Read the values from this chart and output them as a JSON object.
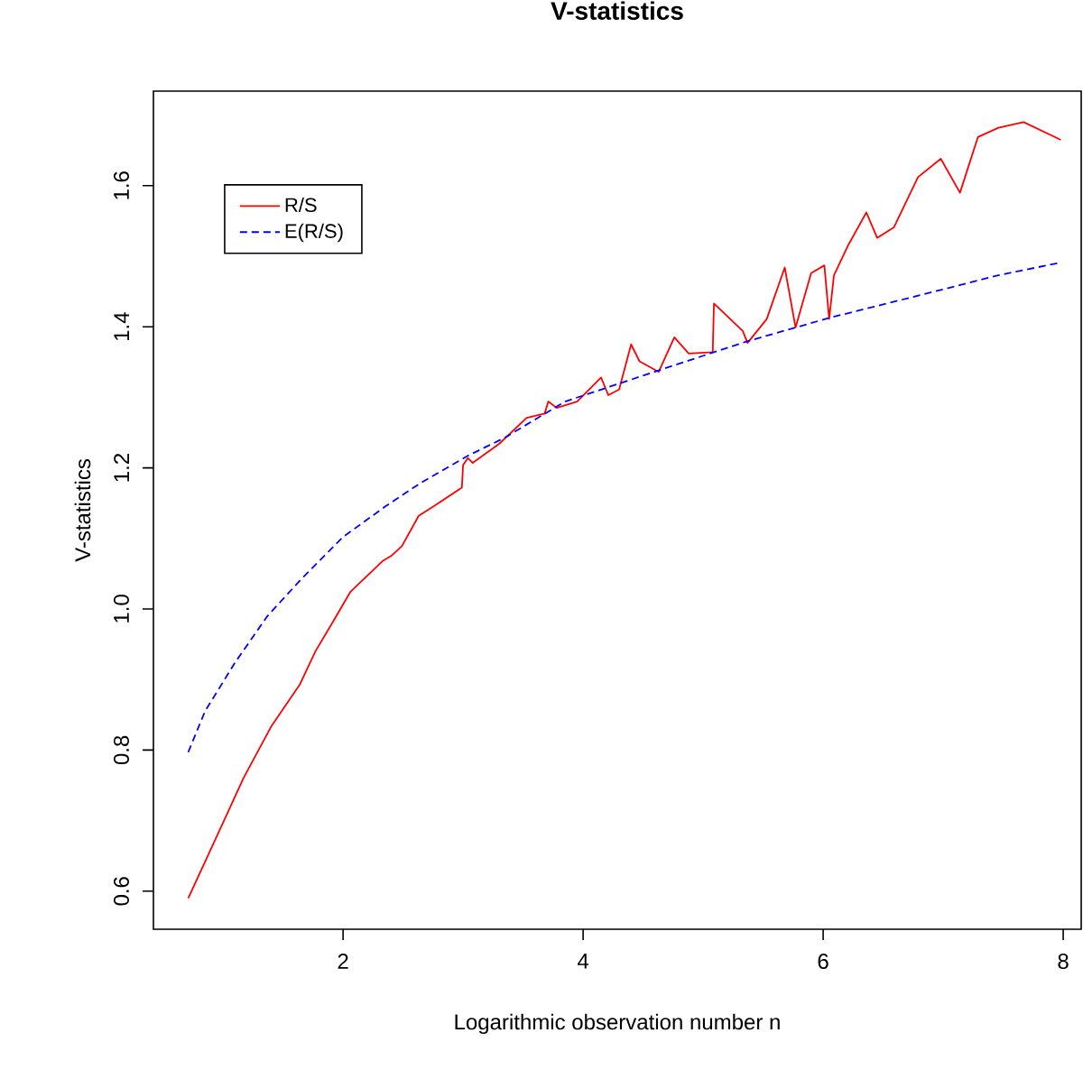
{
  "chart_data": {
    "type": "line",
    "title": "V-statistics",
    "xlabel": "Logarithmic observation number n",
    "ylabel": "V-statistics",
    "xlim": [
      0.42,
      8.15
    ],
    "ylim": [
      0.546,
      1.734
    ],
    "xticks": [
      2,
      4,
      6,
      8
    ],
    "yticks": [
      0.6,
      0.8,
      {
        "value": 1.0,
        "label": "1.0"
      },
      1.2,
      1.4,
      1.6
    ],
    "grid": false,
    "legend": "top left",
    "series": [
      {
        "name": "R/S",
        "color": "#ff0000",
        "line_style": "solid",
        "x": [
          0.71,
          0.97,
          1.17,
          1.4,
          1.64,
          1.77,
          1.92,
          2.06,
          2.33,
          2.4,
          2.49,
          2.63,
          2.76,
          2.99,
          3.0,
          3.04,
          3.08,
          3.3,
          3.53,
          3.68,
          3.71,
          3.78,
          3.95,
          4.15,
          4.21,
          4.3,
          4.4,
          4.47,
          4.63,
          4.76,
          4.88,
          5.08,
          5.09,
          5.33,
          5.37,
          5.53,
          5.68,
          5.77,
          5.9,
          6.01,
          6.05,
          6.09,
          6.21,
          6.36,
          6.45,
          6.59,
          6.79,
          6.98,
          7.14,
          7.29,
          7.46,
          7.67,
          7.98
        ],
        "values": [
          0.59,
          0.686,
          0.76,
          0.833,
          0.893,
          0.94,
          0.983,
          1.024,
          1.068,
          1.075,
          1.089,
          1.132,
          1.146,
          1.172,
          1.204,
          1.214,
          1.207,
          1.234,
          1.271,
          1.277,
          1.294,
          1.285,
          1.294,
          1.328,
          1.303,
          1.311,
          1.375,
          1.351,
          1.336,
          1.385,
          1.362,
          1.364,
          1.433,
          1.394,
          1.377,
          1.411,
          1.484,
          1.399,
          1.476,
          1.487,
          1.411,
          1.473,
          1.516,
          1.562,
          1.526,
          1.541,
          1.612,
          1.638,
          1.59,
          1.669,
          1.682,
          1.69,
          1.665
        ]
      },
      {
        "name": "E(R/S)",
        "color": "#0000ff",
        "line_style": "dashed",
        "x": [
          0.71,
          0.85,
          1.1,
          1.37,
          1.65,
          2.0,
          2.35,
          2.65,
          3.05,
          3.35,
          3.85,
          4.61,
          5.36,
          6.06,
          6.86,
          7.46,
          7.95
        ],
        "values": [
          0.797,
          0.855,
          0.924,
          0.99,
          1.042,
          1.102,
          1.145,
          1.179,
          1.218,
          1.243,
          1.294,
          1.337,
          1.379,
          1.413,
          1.447,
          1.473,
          1.49
        ]
      }
    ]
  }
}
